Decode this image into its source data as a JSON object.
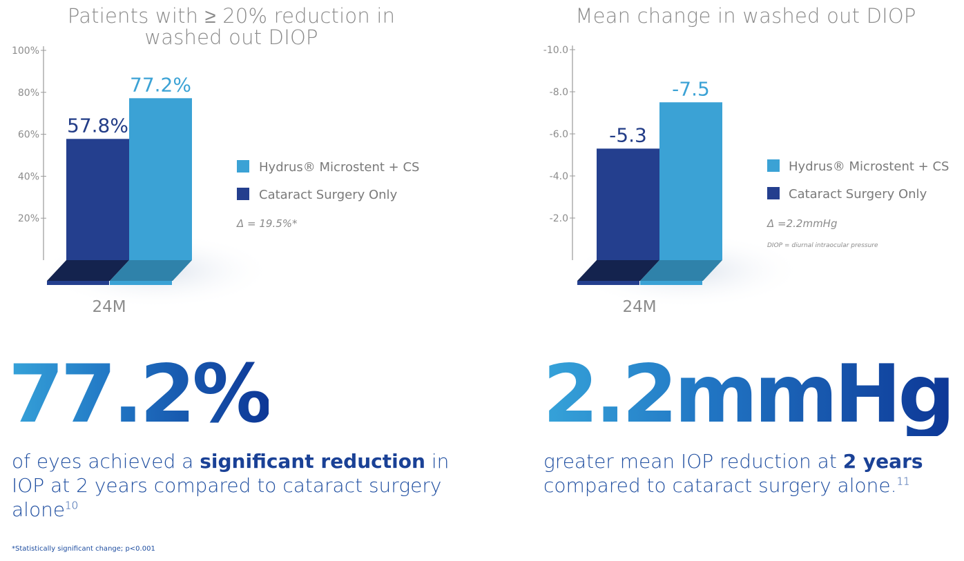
{
  "chart_data": [
    {
      "type": "bar",
      "title": "Patients with ≥ 20% reduction in washed out DIOP",
      "categories": [
        "24M"
      ],
      "series": [
        {
          "name": "Cataract Surgery Only",
          "values": [
            57.8
          ],
          "label": "57.8%",
          "color": "#243f8e"
        },
        {
          "name": "Hydrus® Microstent + CS",
          "values": [
            77.2
          ],
          "label": "77.2%",
          "color": "#3ba2d5"
        }
      ],
      "y_ticks": [
        "100%",
        "80%",
        "60%",
        "40%",
        "20%"
      ],
      "y_tick_values": [
        100,
        80,
        60,
        40,
        20
      ],
      "ylim": [
        0,
        100
      ],
      "legend": [
        "Hydrus® Microstent + CS",
        "Cataract Surgery Only"
      ],
      "legend_position": "right",
      "annotation": "Δ = 19.5%*",
      "grid": false
    },
    {
      "type": "bar",
      "title": "Mean change in washed out DIOP",
      "categories": [
        "24M"
      ],
      "series": [
        {
          "name": "Cataract Surgery Only",
          "values": [
            -5.3
          ],
          "label": "-5.3",
          "color": "#243f8e"
        },
        {
          "name": "Hydrus® Microstent + CS",
          "values": [
            -7.5
          ],
          "label": "-7.5",
          "color": "#3ba2d5"
        }
      ],
      "y_ticks": [
        "-10.0",
        "-8.0",
        "-6.0",
        "-4.0",
        "-2.0"
      ],
      "y_tick_values": [
        -10,
        -8,
        -6,
        -4,
        -2
      ],
      "ylim": [
        0,
        -10
      ],
      "y_inverted": true,
      "legend": [
        "Hydrus® Microstent + CS",
        "Cataract Surgery Only"
      ],
      "legend_position": "right",
      "annotation": "Δ =2.2mmHg",
      "note": "DIOP = diurnal intraocular pressure",
      "grid": false
    }
  ],
  "stats": [
    {
      "value": "77.2%",
      "pre": "of eyes achieved a ",
      "bold": "significant reduction",
      "post": " in IOP at 2 years compared to cataract surgery alone",
      "ref": "10"
    },
    {
      "value": "2.2mmHg",
      "pre": "greater mean IOP reduction at ",
      "bold": "2 years",
      "post": " compared to cataract surgery alone.",
      "ref": "11"
    }
  ],
  "footnote": "*Statistically significant change; p<0.001",
  "colors": {
    "hydrus": "#3ba2d5",
    "cataract": "#243f8e",
    "text_blue": "#1f4ea0",
    "axis_gray": "#8c8c8c"
  }
}
